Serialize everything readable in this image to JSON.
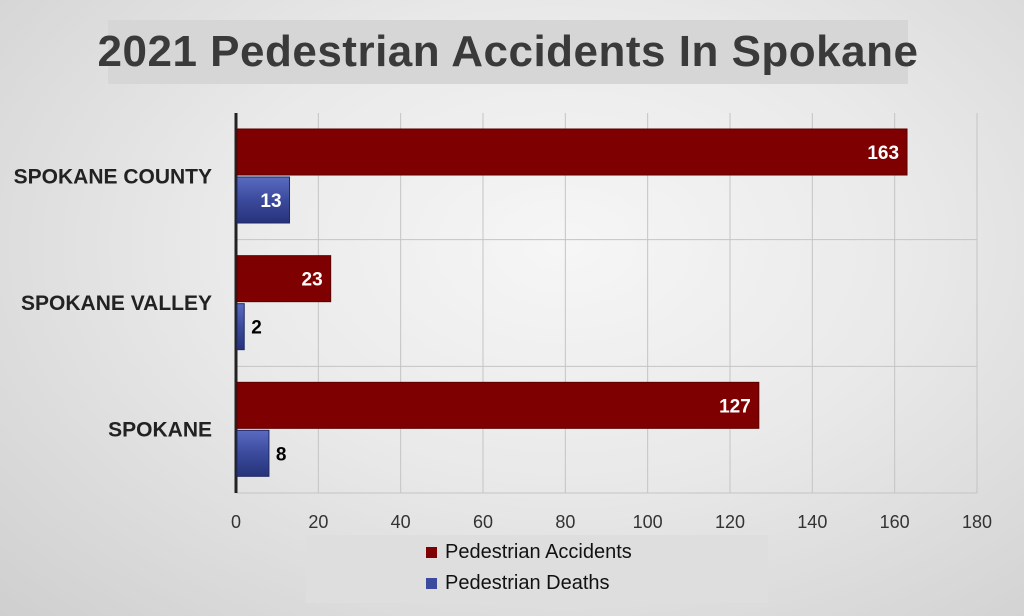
{
  "chart_data": {
    "type": "bar",
    "orientation": "horizontal",
    "title": "2021 Pedestrian Accidents In Spokane",
    "categories": [
      "SPOKANE COUNTY",
      "SPOKANE VALLEY",
      "SPOKANE"
    ],
    "series": [
      {
        "name": "Pedestrian Accidents",
        "values": [
          163,
          23,
          127
        ],
        "color": "#7f0000"
      },
      {
        "name": "Pedestrian Deaths",
        "values": [
          13,
          2,
          8
        ],
        "color": "#3b4a9c"
      }
    ],
    "xlim": [
      0,
      180
    ],
    "xticks": [
      "0",
      "20",
      "40",
      "60",
      "80",
      "100",
      "120",
      "140",
      "160",
      "180"
    ],
    "xlabel": "",
    "ylabel": "",
    "grid": true,
    "legend_position": "bottom"
  }
}
